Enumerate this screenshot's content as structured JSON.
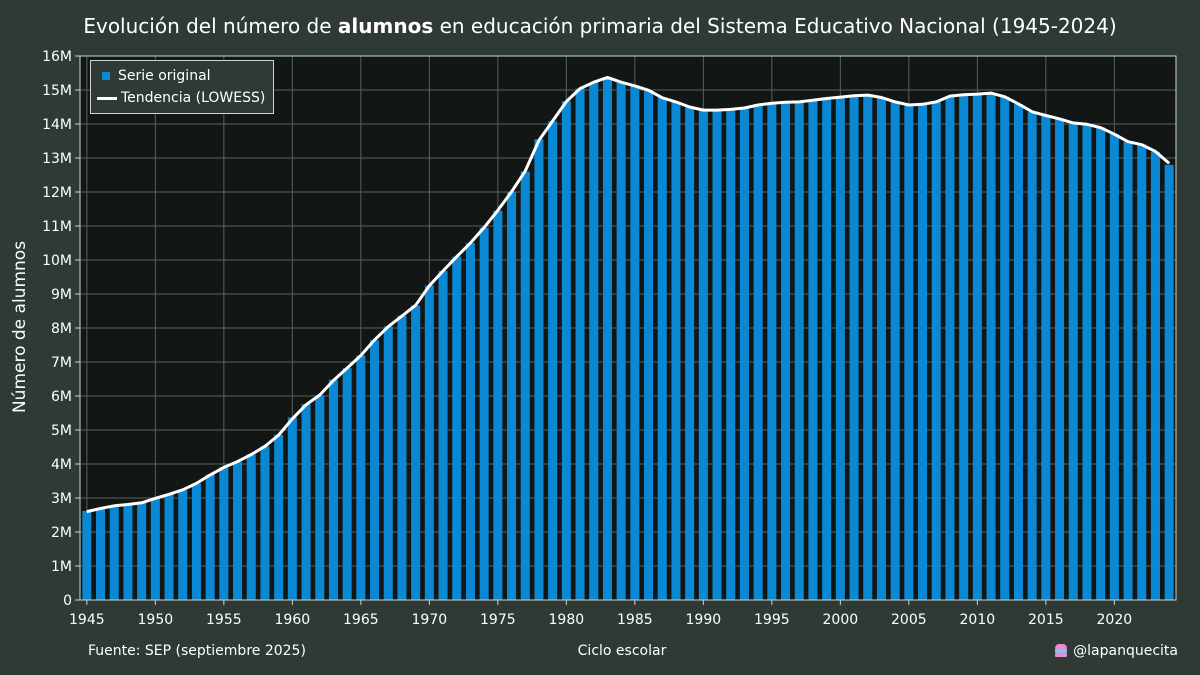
{
  "title_pre": "Evolución del número de ",
  "title_bold": "alumnos",
  "title_post": " en educación primaria del Sistema Educativo Nacional (1945-2024)",
  "source": "Fuente: SEP (septiembre 2025)",
  "handle": "@lapanquecita",
  "handle_icon": "cupcake-icon",
  "colors": {
    "background": "#2e3a33",
    "plot_bg": "#121614",
    "bar": "#0a88d4",
    "trend": "#ffffff",
    "grid": "#5a625d"
  },
  "chart_data": {
    "type": "bar",
    "xlabel": "Ciclo escolar",
    "ylabel": "Número de alumnos",
    "xlim": [
      1944.5,
      2024.5
    ],
    "ylim": [
      0,
      16000000
    ],
    "x_ticks": [
      1945,
      1950,
      1955,
      1960,
      1965,
      1970,
      1975,
      1980,
      1985,
      1990,
      1995,
      2000,
      2005,
      2010,
      2015,
      2020
    ],
    "y_ticks": [
      0,
      1000000,
      2000000,
      3000000,
      4000000,
      5000000,
      6000000,
      7000000,
      8000000,
      9000000,
      10000000,
      11000000,
      12000000,
      13000000,
      14000000,
      15000000,
      16000000
    ],
    "y_tick_labels": [
      "0",
      "1M",
      "2M",
      "3M",
      "4M",
      "5M",
      "6M",
      "7M",
      "8M",
      "9M",
      "10M",
      "11M",
      "12M",
      "13M",
      "14M",
      "15M",
      "16M"
    ],
    "grid": true,
    "legend": {
      "position": "top-left",
      "entries": [
        "Serie original",
        "Tendencia (LOWESS)"
      ]
    },
    "x": [
      1945,
      1946,
      1947,
      1948,
      1949,
      1950,
      1951,
      1952,
      1953,
      1954,
      1955,
      1956,
      1957,
      1958,
      1959,
      1960,
      1961,
      1962,
      1963,
      1964,
      1965,
      1966,
      1967,
      1968,
      1969,
      1970,
      1971,
      1972,
      1973,
      1974,
      1975,
      1976,
      1977,
      1978,
      1979,
      1980,
      1981,
      1982,
      1983,
      1984,
      1985,
      1986,
      1987,
      1988,
      1989,
      1990,
      1991,
      1992,
      1993,
      1994,
      1995,
      1996,
      1997,
      1998,
      1999,
      2000,
      2001,
      2002,
      2003,
      2004,
      2005,
      2006,
      2007,
      2008,
      2009,
      2010,
      2011,
      2012,
      2013,
      2014,
      2015,
      2016,
      2017,
      2018,
      2019,
      2020,
      2021,
      2022,
      2023,
      2024
    ],
    "series": [
      {
        "name": "Serie original",
        "type": "bar",
        "values": [
          2620000,
          2700000,
          2790000,
          2810000,
          2850000,
          2990000,
          3110000,
          3230000,
          3430000,
          3690000,
          3910000,
          4060000,
          4280000,
          4520000,
          4860000,
          5370000,
          5760000,
          6020000,
          6480000,
          6820000,
          7190000,
          7640000,
          8050000,
          8360000,
          8660000,
          9250000,
          9680000,
          10100000,
          10500000,
          10950000,
          11450000,
          12000000,
          12600000,
          13550000,
          14080000,
          14670000,
          15040000,
          15220000,
          15380000,
          15230000,
          15120000,
          14990000,
          14770000,
          14650000,
          14500000,
          14400000,
          14400000,
          14420000,
          14470000,
          14560000,
          14620000,
          14650000,
          14650000,
          14700000,
          14750000,
          14790000,
          14820000,
          14860000,
          14780000,
          14650000,
          14550000,
          14580000,
          14650000,
          14810000,
          14850000,
          14890000,
          14910000,
          14800000,
          14590000,
          14350000,
          14250000,
          14150000,
          14030000,
          13990000,
          13900000,
          13700000,
          13480000,
          13400000,
          13180000,
          12800000
        ]
      },
      {
        "name": "Tendencia (LOWESS)",
        "type": "line",
        "values": [
          2600000,
          2690000,
          2770000,
          2810000,
          2860000,
          2990000,
          3110000,
          3240000,
          3430000,
          3680000,
          3900000,
          4070000,
          4280000,
          4520000,
          4850000,
          5330000,
          5740000,
          6030000,
          6460000,
          6820000,
          7190000,
          7650000,
          8040000,
          8350000,
          8670000,
          9240000,
          9680000,
          10100000,
          10500000,
          10960000,
          11460000,
          12010000,
          12620000,
          13520000,
          14090000,
          14660000,
          15040000,
          15230000,
          15370000,
          15230000,
          15120000,
          14990000,
          14770000,
          14650000,
          14500000,
          14410000,
          14410000,
          14430000,
          14470000,
          14560000,
          14610000,
          14640000,
          14650000,
          14700000,
          14750000,
          14790000,
          14830000,
          14850000,
          14780000,
          14650000,
          14560000,
          14580000,
          14650000,
          14820000,
          14860000,
          14880000,
          14910000,
          14800000,
          14590000,
          14360000,
          14250000,
          14150000,
          14030000,
          13990000,
          13890000,
          13700000,
          13480000,
          13390000,
          13190000,
          12840000
        ]
      }
    ]
  }
}
